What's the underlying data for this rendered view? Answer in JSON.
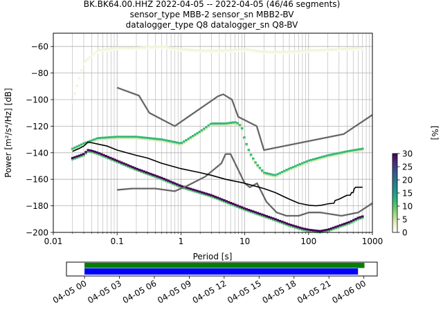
{
  "header": {
    "title_line1": "BK.BK64.00.HHZ   2022-04-05 -- 2022-04-05  (46/46 segments)",
    "title_line2": "sensor_type MBB-2 sensor_sn MBB2-BV",
    "title_line3": "datalogger_type Q8 datalogger_sn Q8-BV"
  },
  "chart_data": [
    {
      "type": "heatmap",
      "xlabel": "Period [s]",
      "ylabel": "Power [m²/s⁴/Hz] [dB]",
      "xscale": "log",
      "xlim": [
        0.01,
        1000
      ],
      "ylim": [
        -200,
        -50
      ],
      "x_ticks": [
        {
          "value": 0.01,
          "label": "0.01"
        },
        {
          "value": 0.1,
          "label": "0.1"
        },
        {
          "value": 1,
          "label": "1"
        },
        {
          "value": 10,
          "label": "10"
        },
        {
          "value": 100,
          "label": "100"
        },
        {
          "value": 1000,
          "label": "1000"
        }
      ],
      "y_ticks": [
        {
          "value": -200,
          "label": "−200"
        },
        {
          "value": -180,
          "label": "−180"
        },
        {
          "value": -160,
          "label": "−160"
        },
        {
          "value": -140,
          "label": "−140"
        },
        {
          "value": -120,
          "label": "−120"
        },
        {
          "value": -100,
          "label": "−100"
        },
        {
          "value": -80,
          "label": "−80"
        },
        {
          "value": -60,
          "label": "−60"
        }
      ],
      "grid": true,
      "series": [
        {
          "role": "new-high-noise-model",
          "color": "#666666",
          "points": [
            [
              0.1,
              -91
            ],
            [
              0.22,
              -97
            ],
            [
              0.32,
              -110
            ],
            [
              0.8,
              -120
            ],
            [
              3.8,
              -97.5
            ],
            [
              4.6,
              -96
            ],
            [
              6.3,
              -100
            ],
            [
              7.9,
              -113
            ],
            [
              15.4,
              -120
            ],
            [
              20,
              -138
            ],
            [
              354,
              -126
            ],
            [
              1000,
              -111.5
            ]
          ]
        },
        {
          "role": "new-low-noise-model",
          "color": "#666666",
          "points": [
            [
              0.1,
              -168
            ],
            [
              0.17,
              -167
            ],
            [
              0.4,
              -167
            ],
            [
              0.8,
              -169
            ],
            [
              1.24,
              -165
            ],
            [
              2.4,
              -158
            ],
            [
              4.3,
              -148
            ],
            [
              5,
              -141
            ],
            [
              6,
              -141
            ],
            [
              10,
              -163
            ],
            [
              12,
              -166
            ],
            [
              15.6,
              -163
            ],
            [
              21.9,
              -177
            ],
            [
              31.6,
              -185
            ],
            [
              45,
              -187.5
            ],
            [
              70,
              -187.5
            ],
            [
              101,
              -185
            ],
            [
              154,
              -185
            ],
            [
              328,
              -187.5
            ],
            [
              600,
              -185
            ],
            [
              1000,
              -178
            ]
          ]
        },
        {
          "role": "mean",
          "color": "#000000",
          "points": [
            [
              0.02,
              -139
            ],
            [
              0.025,
              -137
            ],
            [
              0.03,
              -135
            ],
            [
              0.035,
              -132
            ],
            [
              0.04,
              -132.5
            ],
            [
              0.05,
              -133.5
            ],
            [
              0.07,
              -135
            ],
            [
              0.1,
              -138
            ],
            [
              0.2,
              -142
            ],
            [
              0.3,
              -144
            ],
            [
              0.5,
              -148
            ],
            [
              1,
              -152
            ],
            [
              2,
              -155
            ],
            [
              3,
              -157
            ],
            [
              5,
              -160
            ],
            [
              8,
              -162
            ],
            [
              10,
              -163
            ],
            [
              20,
              -167
            ],
            [
              30,
              -170
            ],
            [
              50,
              -175
            ],
            [
              70,
              -178
            ],
            [
              100,
              -179.5
            ],
            [
              130,
              -180
            ],
            [
              160,
              -179.5
            ],
            [
              200,
              -178.5
            ],
            [
              250,
              -178
            ],
            [
              260,
              -176
            ],
            [
              300,
              -175
            ],
            [
              400,
              -172
            ],
            [
              450,
              -172
            ],
            [
              470,
              -170
            ],
            [
              500,
              -170
            ],
            [
              520,
              -167
            ],
            [
              550,
              -166
            ],
            [
              700,
              -166
            ]
          ]
        }
      ],
      "density_curves": [
        {
          "id": "dominant-low-mode",
          "level": 30,
          "points": [
            [
              0.02,
              -144
            ],
            [
              0.03,
              -141
            ],
            [
              0.035,
              -138
            ],
            [
              0.04,
              -138.5
            ],
            [
              0.05,
              -140
            ],
            [
              0.1,
              -146
            ],
            [
              0.2,
              -152
            ],
            [
              0.5,
              -159
            ],
            [
              1,
              -165
            ],
            [
              3,
              -172
            ],
            [
              10,
              -182
            ],
            [
              30,
              -190
            ],
            [
              50,
              -194
            ],
            [
              80,
              -197
            ],
            [
              100,
              -198
            ],
            [
              150,
              -199
            ],
            [
              200,
              -198
            ],
            [
              300,
              -195
            ],
            [
              450,
              -192
            ],
            [
              600,
              -189
            ],
            [
              700,
              -188
            ]
          ]
        },
        {
          "id": "microseism-peak-mode",
          "level": 12,
          "points": [
            [
              0.02,
              -137
            ],
            [
              0.03,
              -133
            ],
            [
              0.05,
              -129
            ],
            [
              0.1,
              -128
            ],
            [
              0.2,
              -128
            ],
            [
              0.5,
              -130
            ],
            [
              0.8,
              -132
            ],
            [
              1,
              -133
            ],
            [
              2,
              -124
            ],
            [
              3,
              -118
            ],
            [
              5,
              -118
            ],
            [
              7,
              -117
            ],
            [
              8,
              -118
            ],
            [
              9,
              -121
            ],
            [
              10,
              -130
            ],
            [
              12,
              -140
            ],
            [
              15,
              -148
            ],
            [
              20,
              -155
            ],
            [
              30,
              -157
            ],
            [
              50,
              -152
            ],
            [
              100,
              -146
            ],
            [
              200,
              -142
            ],
            [
              400,
              -139
            ],
            [
              700,
              -137
            ]
          ]
        },
        {
          "id": "upper-sparse-mode",
          "level": 2,
          "points": [
            [
              0.02,
              -101
            ],
            [
              0.03,
              -72
            ],
            [
              0.05,
              -63
            ],
            [
              0.1,
              -61
            ],
            [
              0.2,
              -61
            ],
            [
              0.5,
              -60
            ],
            [
              1,
              -62
            ],
            [
              2,
              -63
            ],
            [
              5,
              -63
            ],
            [
              10,
              -62
            ],
            [
              20,
              -64
            ],
            [
              50,
              -64
            ],
            [
              100,
              -63
            ],
            [
              300,
              -62
            ],
            [
              700,
              -61
            ]
          ]
        }
      ]
    },
    {
      "type": "colorbar",
      "ylabel": "[%]",
      "range": [
        0,
        30
      ],
      "ticks": [
        {
          "value": 0,
          "label": "0"
        },
        {
          "value": 5,
          "label": "5"
        },
        {
          "value": 10,
          "label": "10"
        },
        {
          "value": 15,
          "label": "15"
        },
        {
          "value": 20,
          "label": "20"
        },
        {
          "value": 25,
          "label": "25"
        },
        {
          "value": 30,
          "label": "30"
        }
      ],
      "colors": [
        "#ffffff",
        "#e8f2c8",
        "#b4df8e",
        "#6fcf6a",
        "#35b779",
        "#1f9e89",
        "#26828e",
        "#31688e",
        "#3e4989",
        "#482878",
        "#440154"
      ]
    },
    {
      "type": "timeline",
      "range": [
        "2022-04-05 00:00",
        "2022-04-06 00:00"
      ],
      "view_range_hours": [
        -1.55,
        25.15
      ],
      "tick_labels": [
        {
          "hour": 0,
          "label": "04-05 00"
        },
        {
          "hour": 3,
          "label": "04-05 03"
        },
        {
          "hour": 6,
          "label": "04-05 06"
        },
        {
          "hour": 9,
          "label": "04-05 09"
        },
        {
          "hour": 12,
          "label": "04-05 12"
        },
        {
          "hour": 15,
          "label": "04-05 15"
        },
        {
          "hour": 18,
          "label": "04-05 18"
        },
        {
          "hour": 21,
          "label": "04-05 21"
        },
        {
          "hour": 24,
          "label": "04-06 00"
        }
      ],
      "bars": [
        {
          "id": "data-available",
          "color": "#008000",
          "start_hour": 0,
          "end_hour": 24.05
        },
        {
          "id": "used-in-psd",
          "color": "#0000ff",
          "start_hour": 0,
          "end_hour": 23.5
        }
      ]
    }
  ]
}
